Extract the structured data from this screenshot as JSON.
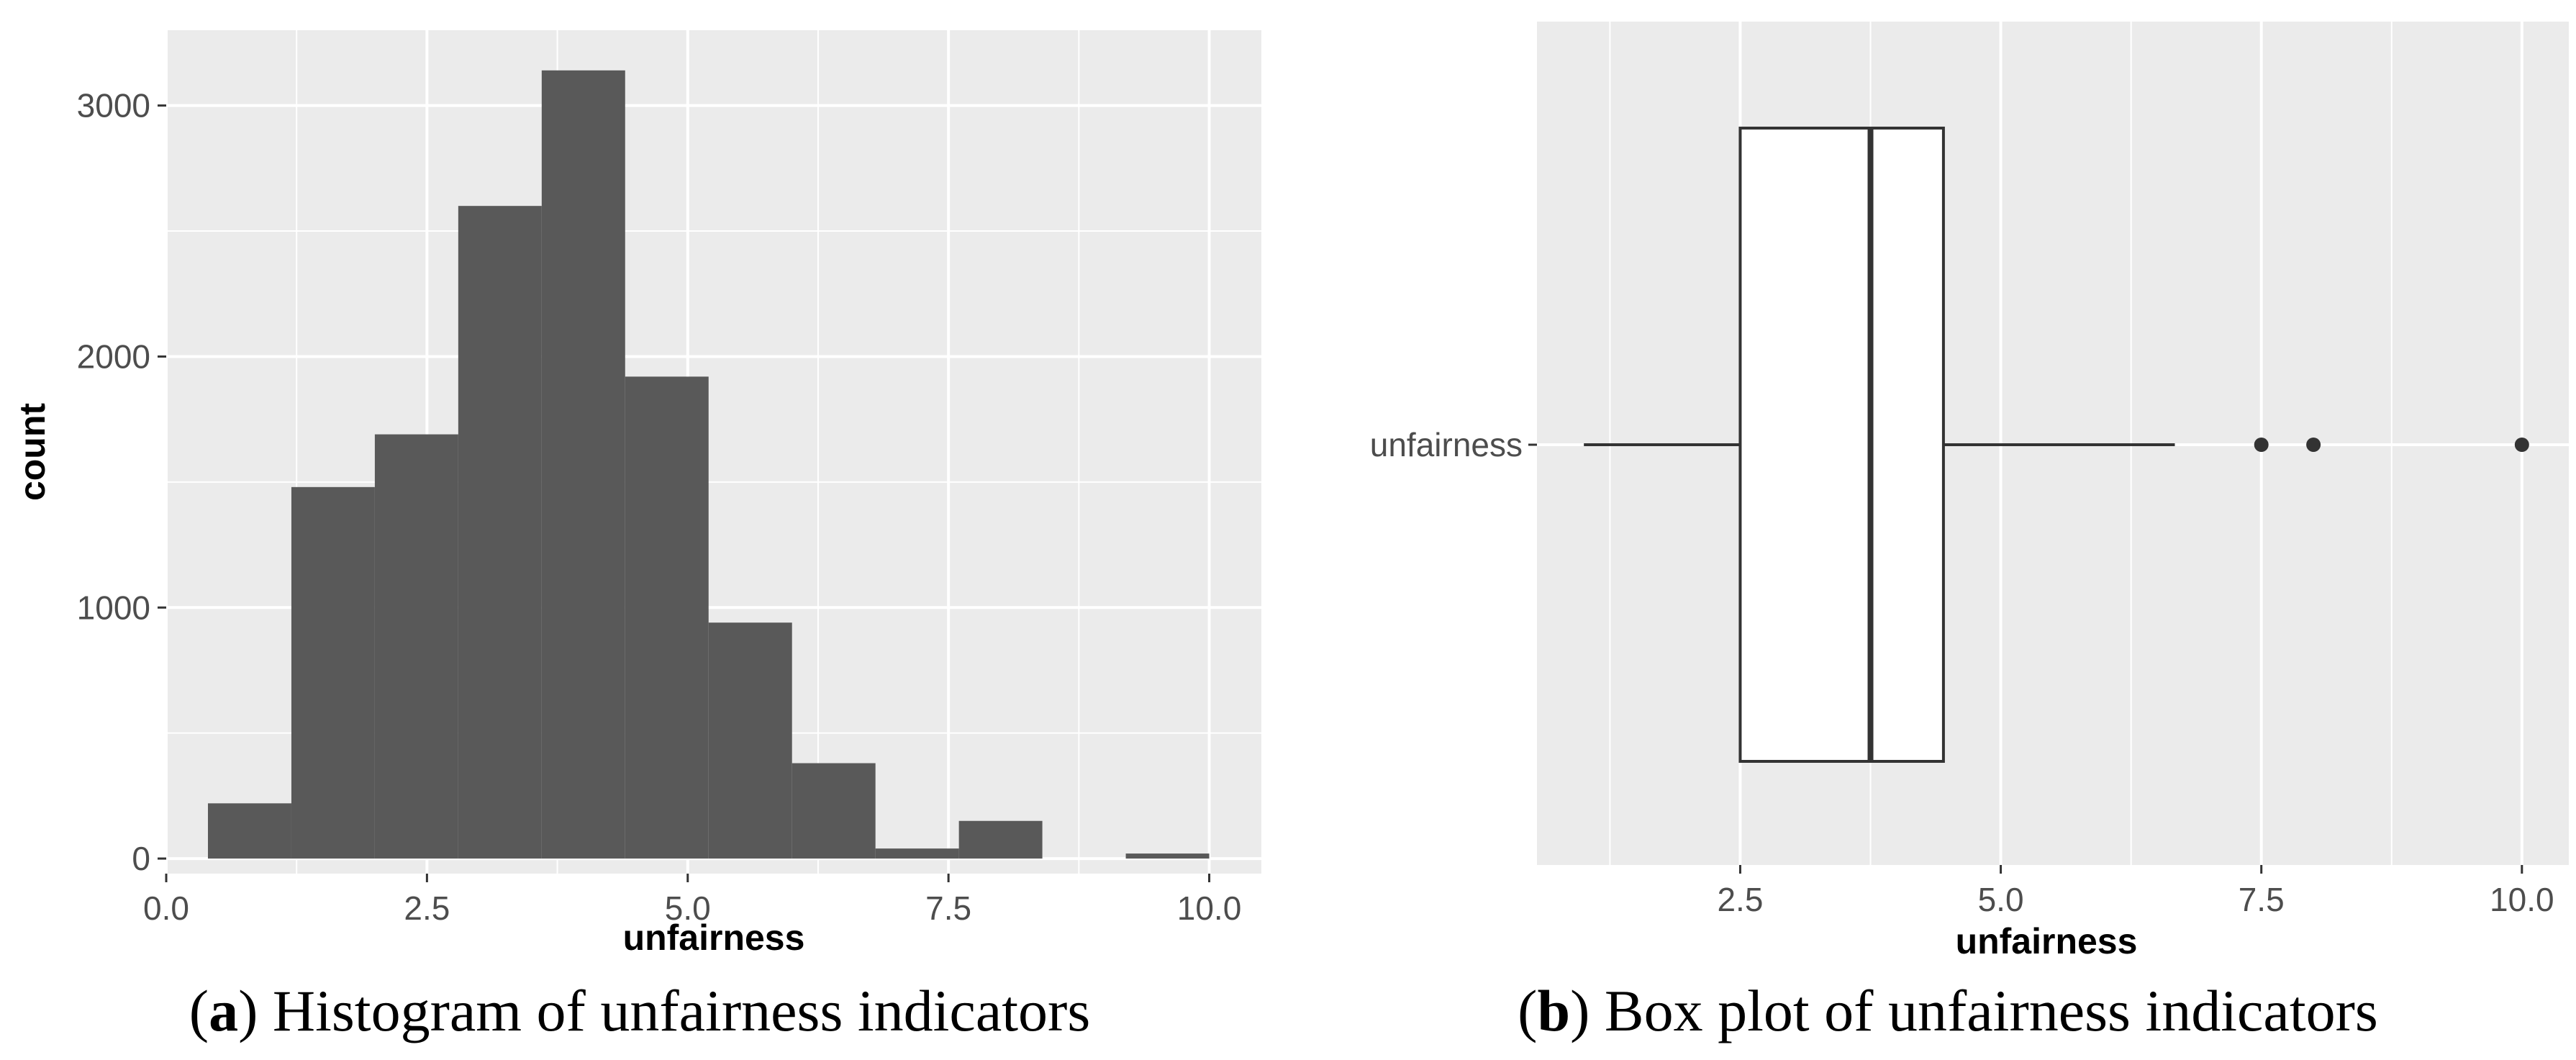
{
  "chart_data": [
    {
      "type": "histogram",
      "caption": {
        "open": "(",
        "letter": "a",
        "close": ")",
        "text": " Histogram of unfairness indicators"
      },
      "xlabel": "unfairness",
      "ylabel": "count",
      "xlim": [
        0,
        10.5
      ],
      "ylim": [
        -60,
        3300
      ],
      "x_ticks": [
        0.0,
        2.5,
        5.0,
        7.5,
        10.0
      ],
      "x_tick_labels": [
        "0.0",
        "2.5",
        "5.0",
        "7.5",
        "10.0"
      ],
      "y_ticks": [
        0,
        1000,
        2000,
        3000
      ],
      "y_tick_labels": [
        "0",
        "1000",
        "2000",
        "3000"
      ],
      "grid": true,
      "bars": [
        {
          "x0": 0.4,
          "x1": 1.2,
          "count": 220
        },
        {
          "x0": 1.2,
          "x1": 2.0,
          "count": 1480
        },
        {
          "x0": 2.0,
          "x1": 2.8,
          "count": 1690
        },
        {
          "x0": 2.8,
          "x1": 3.6,
          "count": 2600
        },
        {
          "x0": 3.6,
          "x1": 4.4,
          "count": 3140
        },
        {
          "x0": 4.4,
          "x1": 5.2,
          "count": 1920
        },
        {
          "x0": 5.2,
          "x1": 6.0,
          "count": 940
        },
        {
          "x0": 6.0,
          "x1": 6.8,
          "count": 380
        },
        {
          "x0": 6.8,
          "x1": 7.6,
          "count": 40
        },
        {
          "x0": 7.6,
          "x1": 8.4,
          "count": 150
        },
        {
          "x0": 8.4,
          "x1": 9.2,
          "count": 0
        },
        {
          "x0": 9.2,
          "x1": 10.0,
          "count": 20
        }
      ],
      "bar_color": "#595959",
      "panel_color": "#ebebeb"
    },
    {
      "type": "box",
      "caption": {
        "open": "(",
        "letter": "b",
        "close": ")",
        "text": " Box plot of unfairness indicators"
      },
      "xlabel": "unfairness",
      "category": "unfairness",
      "xlim": [
        0.55,
        10.45
      ],
      "x_ticks": [
        2.5,
        5.0,
        7.5,
        10.0
      ],
      "x_tick_labels": [
        "2.5",
        "5.0",
        "7.5",
        "10.0"
      ],
      "grid": true,
      "whisker_low": 1.0,
      "q1": 2.5,
      "median": 3.75,
      "q3": 4.45,
      "whisker_high": 6.67,
      "outliers": [
        7.5,
        8.0,
        10.0
      ],
      "panel_color": "#ebebeb"
    }
  ]
}
